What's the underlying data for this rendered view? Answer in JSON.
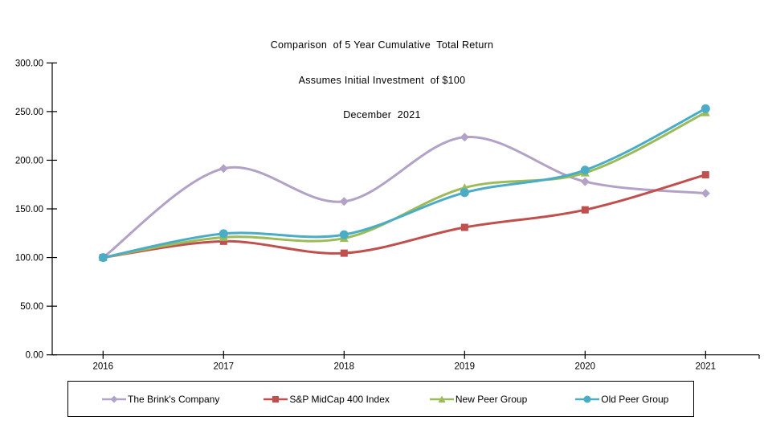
{
  "chart_data": {
    "type": "line",
    "title": "Comparison  of 5 Year Cumulative  Total Return",
    "subtitle": "Assumes Initial Investment  of $100",
    "date_label": "December  2021",
    "categories": [
      "2016",
      "2017",
      "2018",
      "2019",
      "2020",
      "2021"
    ],
    "series": [
      {
        "name": "The Brink's Company",
        "color": "#b2a2c7",
        "marker": "diamond",
        "values": [
          100.0,
          191.5,
          157.6,
          223.7,
          178.0,
          166.0
        ]
      },
      {
        "name": "S&P MidCap 400 Index",
        "color": "#c0504d",
        "marker": "square",
        "values": [
          100.0,
          116.7,
          104.5,
          131.0,
          149.0,
          185.0
        ]
      },
      {
        "name": "New Peer Group",
        "color": "#9bbb59",
        "marker": "triangle",
        "values": [
          100.0,
          120.8,
          119.8,
          171.7,
          187.0,
          249.0
        ]
      },
      {
        "name": "Old Peer Group",
        "color": "#4bacc6",
        "marker": "circle",
        "values": [
          100.0,
          124.5,
          123.5,
          166.7,
          189.8,
          253.0
        ]
      }
    ],
    "xlabel": "",
    "ylabel": "",
    "ylim": [
      0,
      300
    ],
    "y_axis": {
      "min": 0,
      "max": 300,
      "step": 50,
      "tick_labels": [
        "0.00",
        "50.00",
        "100.00",
        "150.00",
        "200.00",
        "250.00",
        "300.00"
      ]
    },
    "grid": false,
    "smooth": true,
    "legend_position": "bottom",
    "axis_color": "#000000",
    "text_color": "#000000"
  }
}
